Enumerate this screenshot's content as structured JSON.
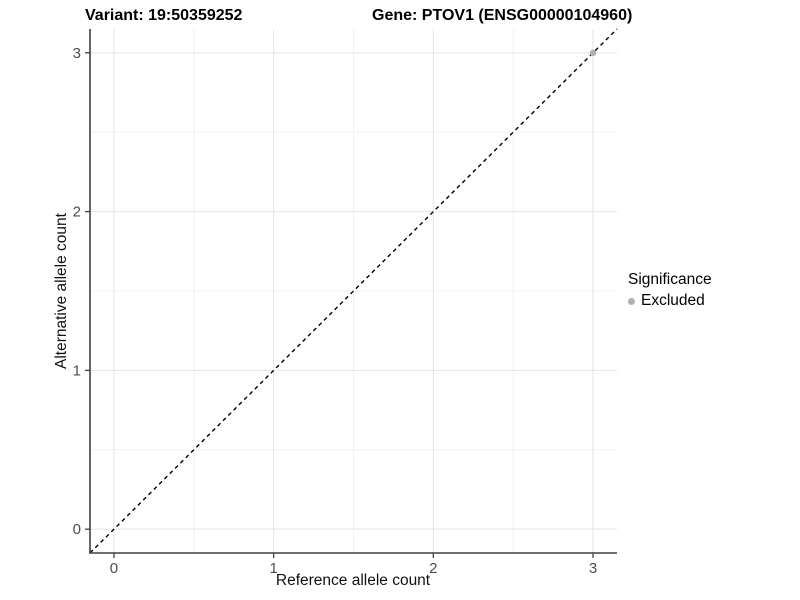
{
  "header": {
    "variant_title": "Variant: 19:50359252",
    "gene_title": "Gene: PTOV1 (ENSG00000104960)"
  },
  "legend": {
    "title": "Significance",
    "items": [
      {
        "label": "Excluded",
        "color": "#B0B0B0"
      }
    ]
  },
  "chart_data": {
    "type": "scatter",
    "title": "Variant: 19:50359252 | Gene: PTOV1 (ENSG00000104960)",
    "xlabel": "Reference allele count",
    "ylabel": "Alternative allele count",
    "xlim": [
      -0.15,
      3.15
    ],
    "ylim": [
      -0.15,
      3.15
    ],
    "x_ticks": [
      0,
      1,
      2,
      3
    ],
    "y_ticks": [
      0,
      1,
      2,
      3
    ],
    "x_minor_ticks": [
      0.5,
      1.5,
      2.5
    ],
    "y_minor_ticks": [
      0.5,
      1.5,
      2.5
    ],
    "grid": "major and minor gridlines, light gray on white panel",
    "legend_position": "right",
    "series": [
      {
        "name": "Excluded",
        "color": "#B0B0B0",
        "points": [
          {
            "x": 3,
            "y": 3
          }
        ]
      }
    ],
    "reference_line": {
      "type": "identity y=x",
      "style": "dashed",
      "color": "#000000"
    }
  },
  "colors": {
    "background": "#FFFFFF",
    "grid_major": "#E4E4E4",
    "grid_minor": "#F2F2F2",
    "axis_line": "#404040",
    "tick_text": "#4D4D4D",
    "title_text": "#000000",
    "point": "#B0B0B0",
    "dashed_line": "#000000"
  }
}
